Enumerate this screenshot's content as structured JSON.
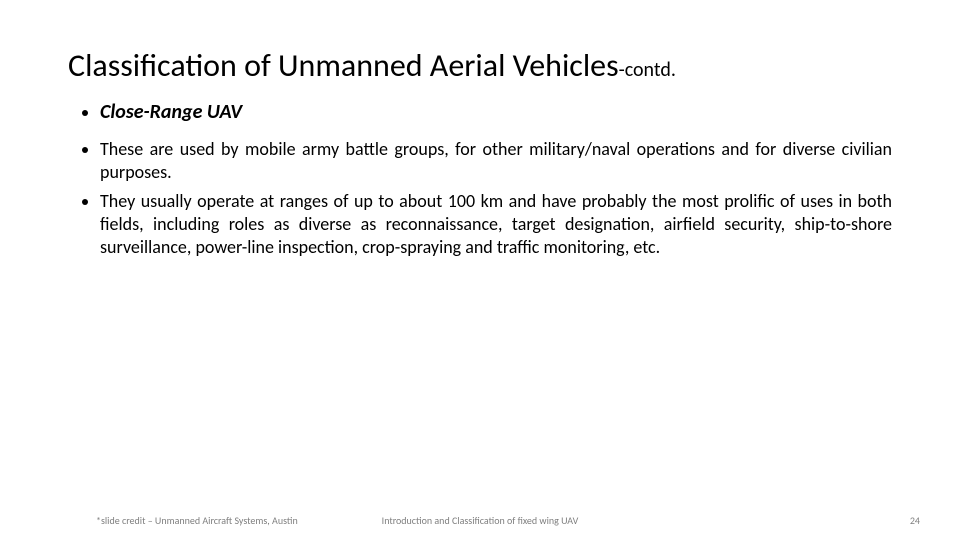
{
  "title": {
    "main": "Classification of Unmanned Aerial Vehicles",
    "suffix": "-contd."
  },
  "heading_bullet": {
    "text": "Close-Range UAV"
  },
  "body_bullets": [
    "These are used by mobile army battle groups, for other military/naval operations and for diverse civilian purposes.",
    "They usually operate at ranges of up to about 100 km and have probably the most prolific of uses in both fields, including roles as diverse as reconnaissance, target designation, airfield security, ship-to-shore surveillance, power-line inspection, crop-spraying and traffic monitoring, etc."
  ],
  "footer": {
    "credit": "*slide credit – Unmanned Aircraft Systems, Austin",
    "center": "Introduction and Classification of fixed wing UAV",
    "page": "24"
  },
  "colors": {
    "text": "#000000",
    "footer": "#808080",
    "background": "#ffffff"
  },
  "typography": {
    "title_fontsize": 32,
    "suffix_fontsize": 20,
    "heading_fontsize": 20,
    "body_fontsize": 18,
    "footer_fontsize": 10,
    "heading_weight": "bold",
    "heading_style": "italic"
  },
  "layout": {
    "slide_width": 960,
    "slide_height": 540
  }
}
